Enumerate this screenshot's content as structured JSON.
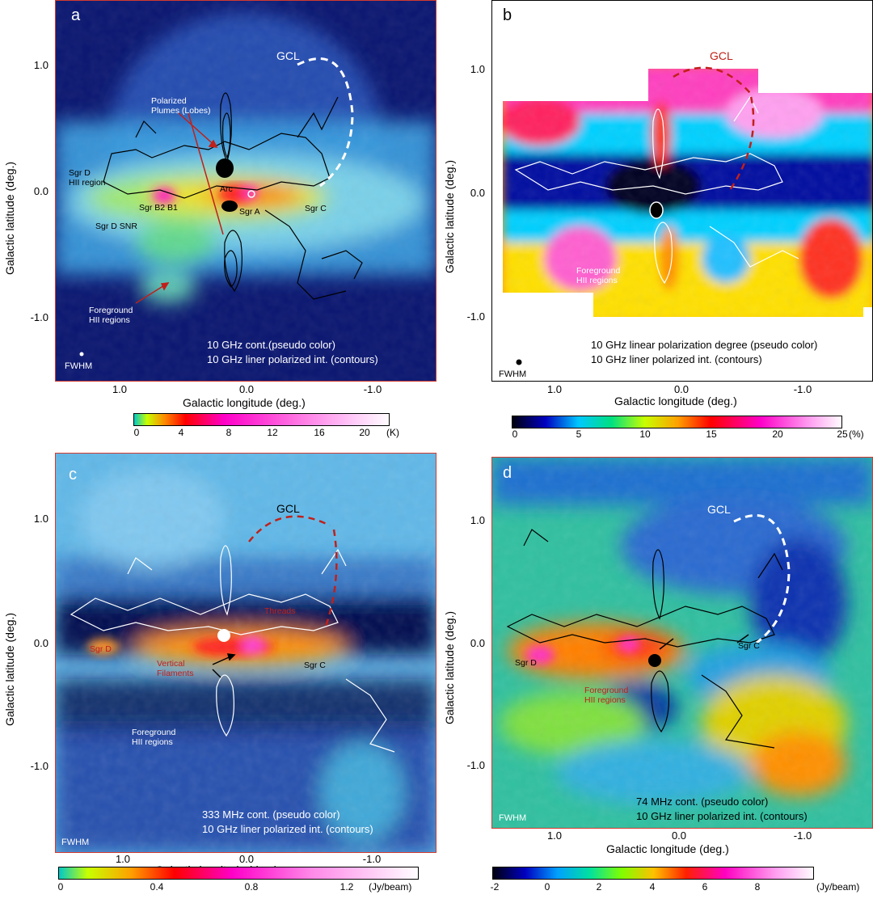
{
  "common": {
    "ylabel": "Galactic latitude (deg.)",
    "xlabel": "Galactic longitude (deg.)",
    "xticks": [
      "1.0",
      "0.0",
      "-1.0"
    ],
    "yticks": [
      "1.0",
      "0.0",
      "-1.0"
    ],
    "fwhm": "FWHM",
    "gcl": "GCL",
    "colors": {
      "frame_red": "#d33a2f",
      "contour_dark": "#000000",
      "contour_light": "#ffffff",
      "annotation_red": "#c0201a"
    }
  },
  "panel_a": {
    "letter": "a",
    "labels": {
      "plumes": "Polarized\nPlumes (Lobes)",
      "sgr_d_hii": "Sgr D\nHII region",
      "arc": "Arc",
      "sgr_b2_b1": "Sgr B2 B1",
      "sgr_a": "Sgr A",
      "sgr_c": "Sgr C",
      "sgr_d_snr": "Sgr D SNR",
      "foreground": "Foreground\nHII regions"
    },
    "caption_line1": "10 GHz cont.(pseudo color)",
    "caption_line2": "10 GHz liner polarized int. (contours)",
    "colorbar": {
      "ticks": [
        "0",
        "4",
        "8",
        "12",
        "16",
        "20"
      ],
      "unit": "(K)"
    }
  },
  "panel_b": {
    "letter": "b",
    "labels": {
      "foreground": "Foreground\nHII regions"
    },
    "caption_line1": "10 GHz linear polarization degree (pseudo color)",
    "caption_line2": "10 GHz liner polarized int. (contours)",
    "colorbar": {
      "ticks": [
        "0",
        "5",
        "10",
        "15",
        "20",
        "25"
      ],
      "unit": "(%)"
    }
  },
  "panel_c": {
    "letter": "c",
    "labels": {
      "sgr_d": "Sgr D",
      "vertical_filaments": "Vertical\nFilaments",
      "sgr_c": "Sgr C",
      "threads": "Threads",
      "foreground": "Foreground\nHII regions"
    },
    "caption_line1": "333 MHz cont. (pseudo color)",
    "caption_line2": "10 GHz liner polarized int. (contours)",
    "colorbar": {
      "ticks": [
        "0",
        "0.4",
        "0.8",
        "1.2"
      ],
      "unit": "(Jy/beam)"
    }
  },
  "panel_d": {
    "letter": "d",
    "labels": {
      "sgr_d": "Sgr D",
      "sgr_c": "Sgr C",
      "foreground": "Foreground\nHII regions"
    },
    "caption_line1": "74 MHz cont. (pseudo color)",
    "caption_line2": "10 GHz liner polarized int. (contours)",
    "colorbar": {
      "ticks": [
        "-2",
        "0",
        "2",
        "4",
        "6",
        "8"
      ],
      "unit": "(Jy/beam)"
    }
  }
}
